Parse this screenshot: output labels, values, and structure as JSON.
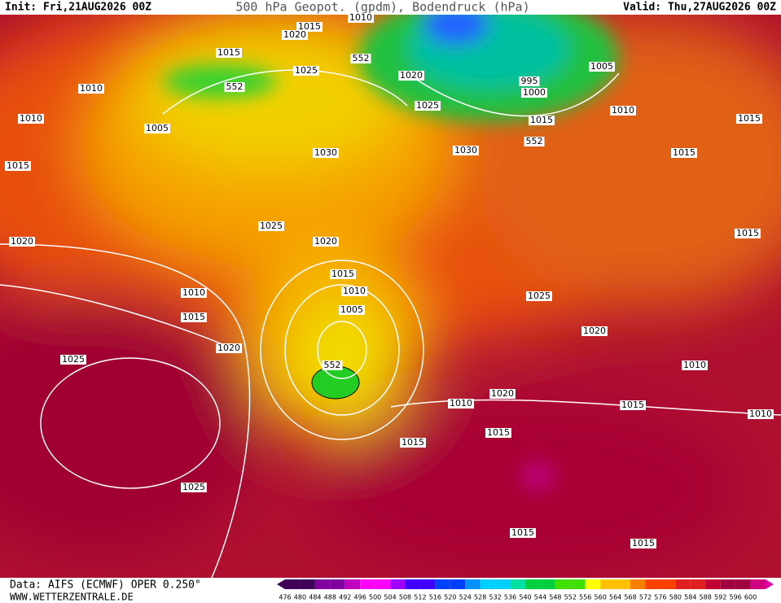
{
  "header": {
    "init": "Init: Fri,21AUG2026 00Z",
    "title": "500 hPa Geopot. (gpdm), Bodendruck (hPa)",
    "valid": "Valid: Thu,27AUG2026 00Z"
  },
  "isobar_labels": [
    "1010",
    "1015",
    "1020",
    "1015",
    "552",
    "1025",
    "552",
    "1010",
    "1020",
    "1025",
    "995",
    "1000",
    "1005",
    "1010",
    "1015",
    "552",
    "1010",
    "1005",
    "1015",
    "1030",
    "1030",
    "1015",
    "1015",
    "1025",
    "1020",
    "1020",
    "1015",
    "1015",
    "1010",
    "1010",
    "1005",
    "1025",
    "1015",
    "1020",
    "1020",
    "1025",
    "552",
    "1010",
    "1010",
    "1020",
    "1015",
    "1010",
    "1015",
    "1015",
    "1025",
    "1015",
    "1015"
  ],
  "footer": {
    "source": "Data: AIFS (ECMWF) OPER 0.250°",
    "site": "WWW.WETTERZENTRALE.DE"
  },
  "colorbar": {
    "labels": [
      476,
      480,
      484,
      488,
      492,
      496,
      500,
      504,
      508,
      512,
      516,
      520,
      524,
      528,
      532,
      536,
      540,
      544,
      548,
      552,
      556,
      560,
      564,
      568,
      572,
      576,
      580,
      584,
      588,
      592,
      596,
      600
    ]
  }
}
